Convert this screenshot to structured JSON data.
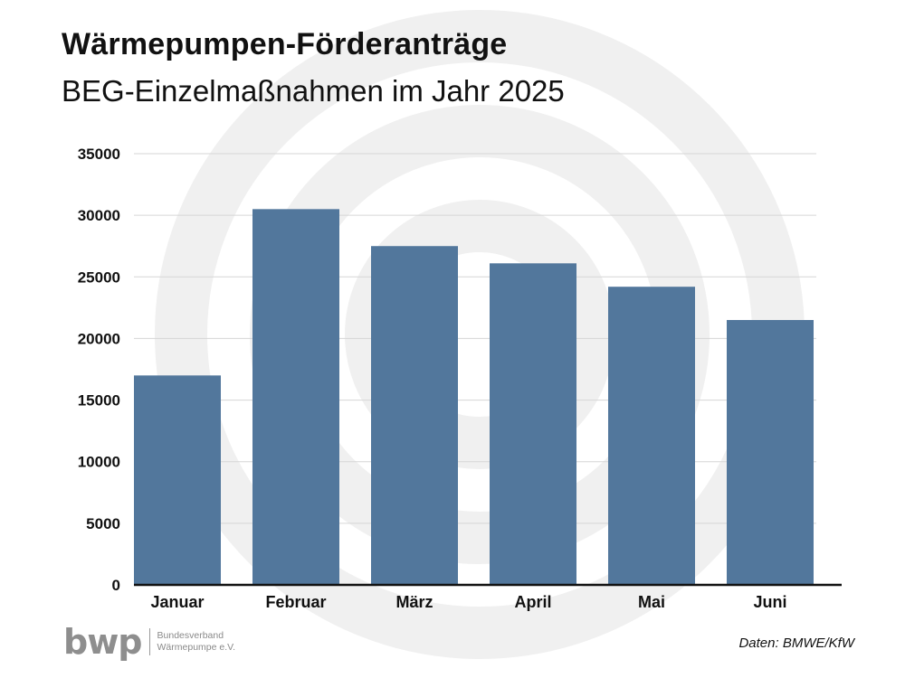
{
  "header": {
    "title": "Wärmepumpen-Förderanträge",
    "subtitle": "BEG-Einzelmaßnahmen im Jahr 2025"
  },
  "footer": {
    "logo_mark": "bwp",
    "logo_line1": "Bundesverband",
    "logo_line2": "Wärmepumpe e.V.",
    "source": "Daten: BMWE/KfW"
  },
  "colors": {
    "bar": "#52779c",
    "grid": "#d6d6d6",
    "axis": "#111111",
    "watermark": "#f0f0f0"
  },
  "chart_data": {
    "type": "bar",
    "categories": [
      "Januar",
      "Februar",
      "März",
      "April",
      "Mai",
      "Juni"
    ],
    "values": [
      17000,
      30500,
      27500,
      26100,
      24200,
      21500
    ],
    "yticks": [
      0,
      5000,
      10000,
      15000,
      20000,
      25000,
      30000,
      35000
    ],
    "ylim": [
      0,
      35000
    ],
    "title": "Wärmepumpen-Förderanträge",
    "subtitle": "BEG-Einzelmaßnahmen im Jahr 2025",
    "xlabel": "",
    "ylabel": "",
    "grid": true,
    "legend": "none"
  }
}
